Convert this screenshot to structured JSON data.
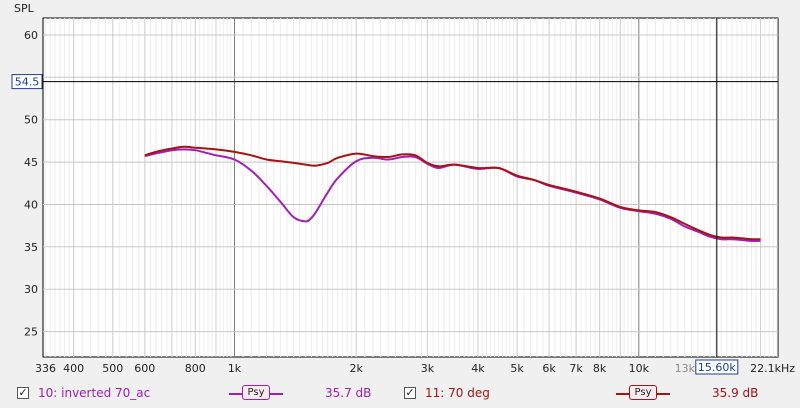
{
  "chart_data": {
    "type": "line",
    "ylabel": "SPL",
    "xscale": "log",
    "xlim": [
      336,
      22100
    ],
    "ylim": [
      22,
      62
    ],
    "x_ticks": [
      {
        "value": 336,
        "label": "336"
      },
      {
        "value": 400,
        "label": "400"
      },
      {
        "value": 500,
        "label": "500"
      },
      {
        "value": 600,
        "label": "600"
      },
      {
        "value": 800,
        "label": "800"
      },
      {
        "value": 1000,
        "label": "1k"
      },
      {
        "value": 2000,
        "label": "2k"
      },
      {
        "value": 3000,
        "label": "3k"
      },
      {
        "value": 4000,
        "label": "4k"
      },
      {
        "value": 5000,
        "label": "5k"
      },
      {
        "value": 6000,
        "label": "6k"
      },
      {
        "value": 7000,
        "label": "7k"
      },
      {
        "value": 8000,
        "label": "8k"
      },
      {
        "value": 10000,
        "label": "10k"
      },
      {
        "value": 13000,
        "label": "13k"
      },
      {
        "value": 22100,
        "label": "22.1kHz"
      }
    ],
    "y_ticks": [
      25,
      30,
      35,
      40,
      45,
      50,
      60
    ],
    "cursor": {
      "x": 15600,
      "x_label": "15.60k",
      "y": 54.5,
      "y_label": "54.5"
    },
    "grid": true,
    "series": [
      {
        "name": "10: inverted 70_ac",
        "color": "#a020b4",
        "x": [
          600,
          650,
          700,
          750,
          800,
          850,
          900,
          1000,
          1100,
          1200,
          1300,
          1400,
          1500,
          1550,
          1600,
          1700,
          1800,
          2000,
          2200,
          2400,
          2600,
          2800,
          3000,
          3200,
          3500,
          4000,
          4500,
          5000,
          5500,
          6000,
          7000,
          8000,
          9000,
          10000,
          11000,
          12000,
          13000,
          14000,
          15000,
          16000,
          17000,
          18000,
          19000,
          20000
        ],
        "values": [
          45.7,
          46.1,
          46.4,
          46.5,
          46.4,
          46.1,
          45.8,
          45.3,
          44.0,
          42.2,
          40.3,
          38.5,
          38.0,
          38.4,
          39.3,
          41.4,
          43.1,
          45.1,
          45.5,
          45.3,
          45.6,
          45.6,
          44.8,
          44.3,
          44.7,
          44.2,
          44.3,
          43.3,
          42.9,
          42.2,
          41.4,
          40.6,
          39.6,
          39.2,
          38.9,
          38.3,
          37.4,
          36.8,
          36.2,
          35.9,
          35.9,
          35.8,
          35.7,
          35.7
        ]
      },
      {
        "name": "11: 70 deg",
        "color": "#a51414",
        "x": [
          600,
          650,
          700,
          750,
          800,
          850,
          900,
          1000,
          1100,
          1200,
          1300,
          1400,
          1500,
          1550,
          1600,
          1700,
          1800,
          2000,
          2200,
          2400,
          2600,
          2800,
          3000,
          3200,
          3500,
          4000,
          4500,
          5000,
          5500,
          6000,
          7000,
          8000,
          9000,
          10000,
          11000,
          12000,
          13000,
          14000,
          15000,
          16000,
          17000,
          18000,
          19000,
          20000
        ],
        "values": [
          45.8,
          46.3,
          46.6,
          46.8,
          46.7,
          46.6,
          46.5,
          46.2,
          45.8,
          45.3,
          45.1,
          44.9,
          44.7,
          44.6,
          44.6,
          44.9,
          45.5,
          46.0,
          45.7,
          45.6,
          45.9,
          45.8,
          44.9,
          44.5,
          44.7,
          44.3,
          44.3,
          43.4,
          42.9,
          42.3,
          41.5,
          40.7,
          39.7,
          39.3,
          39.1,
          38.5,
          37.7,
          37.0,
          36.4,
          36.1,
          36.1,
          36.0,
          35.9,
          35.9
        ]
      }
    ]
  },
  "legend": [
    {
      "name": "10: inverted 70_ac",
      "color": "#a020b4",
      "psy_label": "Psy",
      "value": "35.7 dB",
      "checked": "✓"
    },
    {
      "name": "11: 70 deg",
      "color": "#a51414",
      "psy_label": "Psy",
      "value": "35.9 dB",
      "checked": "✓"
    }
  ]
}
